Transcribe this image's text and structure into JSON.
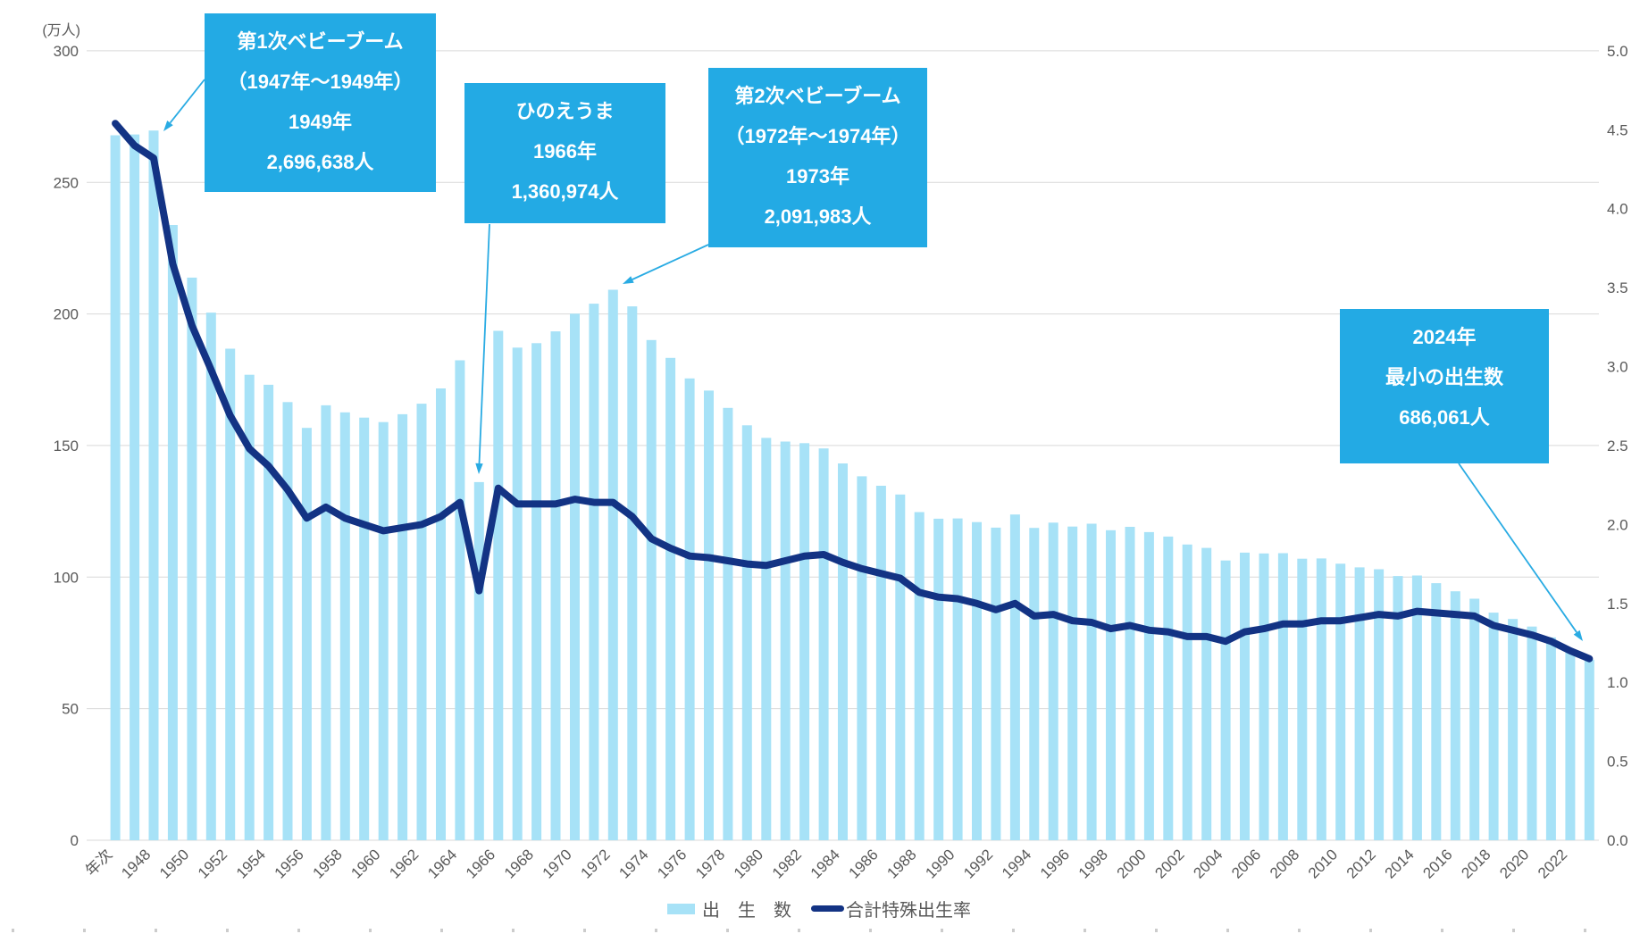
{
  "colors": {
    "bar": "#A7E2F7",
    "line": "#133384",
    "callout": "#23AAE4",
    "arrow": "#29ABE3",
    "grid": "#D9D9D9",
    "axis_text": "#595959",
    "legend_text": "#595959",
    "tick_marks": "#CCCCCC"
  },
  "left_axis": {
    "unit_label": "(万人)",
    "ticks": [
      0,
      50,
      100,
      150,
      200,
      250,
      300
    ]
  },
  "right_axis": {
    "ticks": [
      0.0,
      0.5,
      1.0,
      1.5,
      2.0,
      2.5,
      3.0,
      3.5,
      4.0,
      4.5,
      5.0
    ]
  },
  "x_tick_labels": [
    "年次",
    "1948",
    "1950",
    "1952",
    "1954",
    "1956",
    "1958",
    "1960",
    "1962",
    "1964",
    "1966",
    "1968",
    "1970",
    "1972",
    "1974",
    "1976",
    "1978",
    "1980",
    "1982",
    "1984",
    "1986",
    "1988",
    "1990",
    "1992",
    "1994",
    "1996",
    "1998",
    "2000",
    "2002",
    "2004",
    "2006",
    "2008",
    "2010",
    "2012",
    "2014",
    "2016",
    "2018",
    "2020",
    "2022"
  ],
  "legend": {
    "births_label": "出　生　数",
    "rate_label": "合計特殊出生率"
  },
  "annotations": [
    {
      "lines": [
        "第1次ベビーブーム",
        "（1947年〜1949年）",
        "1949年",
        "2,696,638人"
      ]
    },
    {
      "lines": [
        "ひのえうま",
        "1966年",
        "1,360,974人"
      ]
    },
    {
      "lines": [
        "第2次ベビーブーム",
        "（1972年〜1974年）",
        "1973年",
        "2,091,983人"
      ]
    },
    {
      "lines": [
        "2024年",
        "最小の出生数",
        "686,061人"
      ]
    }
  ],
  "chart_data": {
    "type": "bar+line",
    "title": "",
    "categories": [
      1947,
      1948,
      1949,
      1950,
      1951,
      1952,
      1953,
      1954,
      1955,
      1956,
      1957,
      1958,
      1959,
      1960,
      1961,
      1962,
      1963,
      1964,
      1965,
      1966,
      1967,
      1968,
      1969,
      1970,
      1971,
      1972,
      1973,
      1974,
      1975,
      1976,
      1977,
      1978,
      1979,
      1980,
      1981,
      1982,
      1983,
      1984,
      1985,
      1986,
      1987,
      1988,
      1989,
      1990,
      1991,
      1992,
      1993,
      1994,
      1995,
      1996,
      1997,
      1998,
      1999,
      2000,
      2001,
      2002,
      2003,
      2004,
      2005,
      2006,
      2007,
      2008,
      2009,
      2010,
      2011,
      2012,
      2013,
      2014,
      2015,
      2016,
      2017,
      2018,
      2019,
      2020,
      2021,
      2022,
      2023,
      2024
    ],
    "series": [
      {
        "name": "出生数",
        "axis": "left",
        "unit": "万人",
        "type": "bar",
        "values": [
          267.9,
          268.2,
          269.7,
          233.8,
          213.8,
          200.5,
          186.8,
          176.9,
          173.1,
          166.5,
          156.7,
          165.3,
          162.6,
          160.6,
          158.9,
          161.9,
          165.9,
          171.7,
          182.4,
          136.1,
          193.6,
          187.2,
          188.9,
          193.4,
          200.1,
          203.9,
          209.2,
          202.9,
          190.1,
          183.3,
          175.5,
          170.9,
          164.3,
          157.7,
          152.9,
          151.5,
          150.9,
          148.9,
          143.2,
          138.3,
          134.7,
          131.4,
          124.7,
          122.2,
          122.3,
          120.9,
          118.8,
          123.8,
          118.7,
          120.7,
          119.2,
          120.3,
          117.8,
          119.1,
          117.1,
          115.4,
          112.4,
          111.1,
          106.3,
          109.3,
          109.0,
          109.1,
          107.0,
          107.1,
          105.1,
          103.7,
          103.0,
          100.4,
          100.6,
          97.7,
          94.6,
          91.8,
          86.5,
          84.1,
          81.2,
          77.1,
          72.7,
          68.6
        ]
      },
      {
        "name": "合計特殊出生率",
        "axis": "right",
        "type": "line",
        "values": [
          4.54,
          4.4,
          4.32,
          3.65,
          3.26,
          2.98,
          2.69,
          2.48,
          2.37,
          2.22,
          2.04,
          2.11,
          2.04,
          2.0,
          1.96,
          1.98,
          2.0,
          2.05,
          2.14,
          1.58,
          2.23,
          2.13,
          2.13,
          2.13,
          2.16,
          2.14,
          2.14,
          2.05,
          1.91,
          1.85,
          1.8,
          1.79,
          1.77,
          1.75,
          1.74,
          1.77,
          1.8,
          1.81,
          1.76,
          1.72,
          1.69,
          1.66,
          1.57,
          1.54,
          1.53,
          1.5,
          1.46,
          1.5,
          1.42,
          1.43,
          1.39,
          1.38,
          1.34,
          1.36,
          1.33,
          1.32,
          1.29,
          1.29,
          1.26,
          1.32,
          1.34,
          1.37,
          1.37,
          1.39,
          1.39,
          1.41,
          1.43,
          1.42,
          1.45,
          1.44,
          1.43,
          1.42,
          1.36,
          1.33,
          1.3,
          1.26,
          1.2,
          1.15
        ]
      }
    ],
    "ylim_left": [
      0,
      300
    ],
    "ylim_right": [
      0.0,
      5.0
    ],
    "grid": "horizontal, at left-axis ticks"
  }
}
